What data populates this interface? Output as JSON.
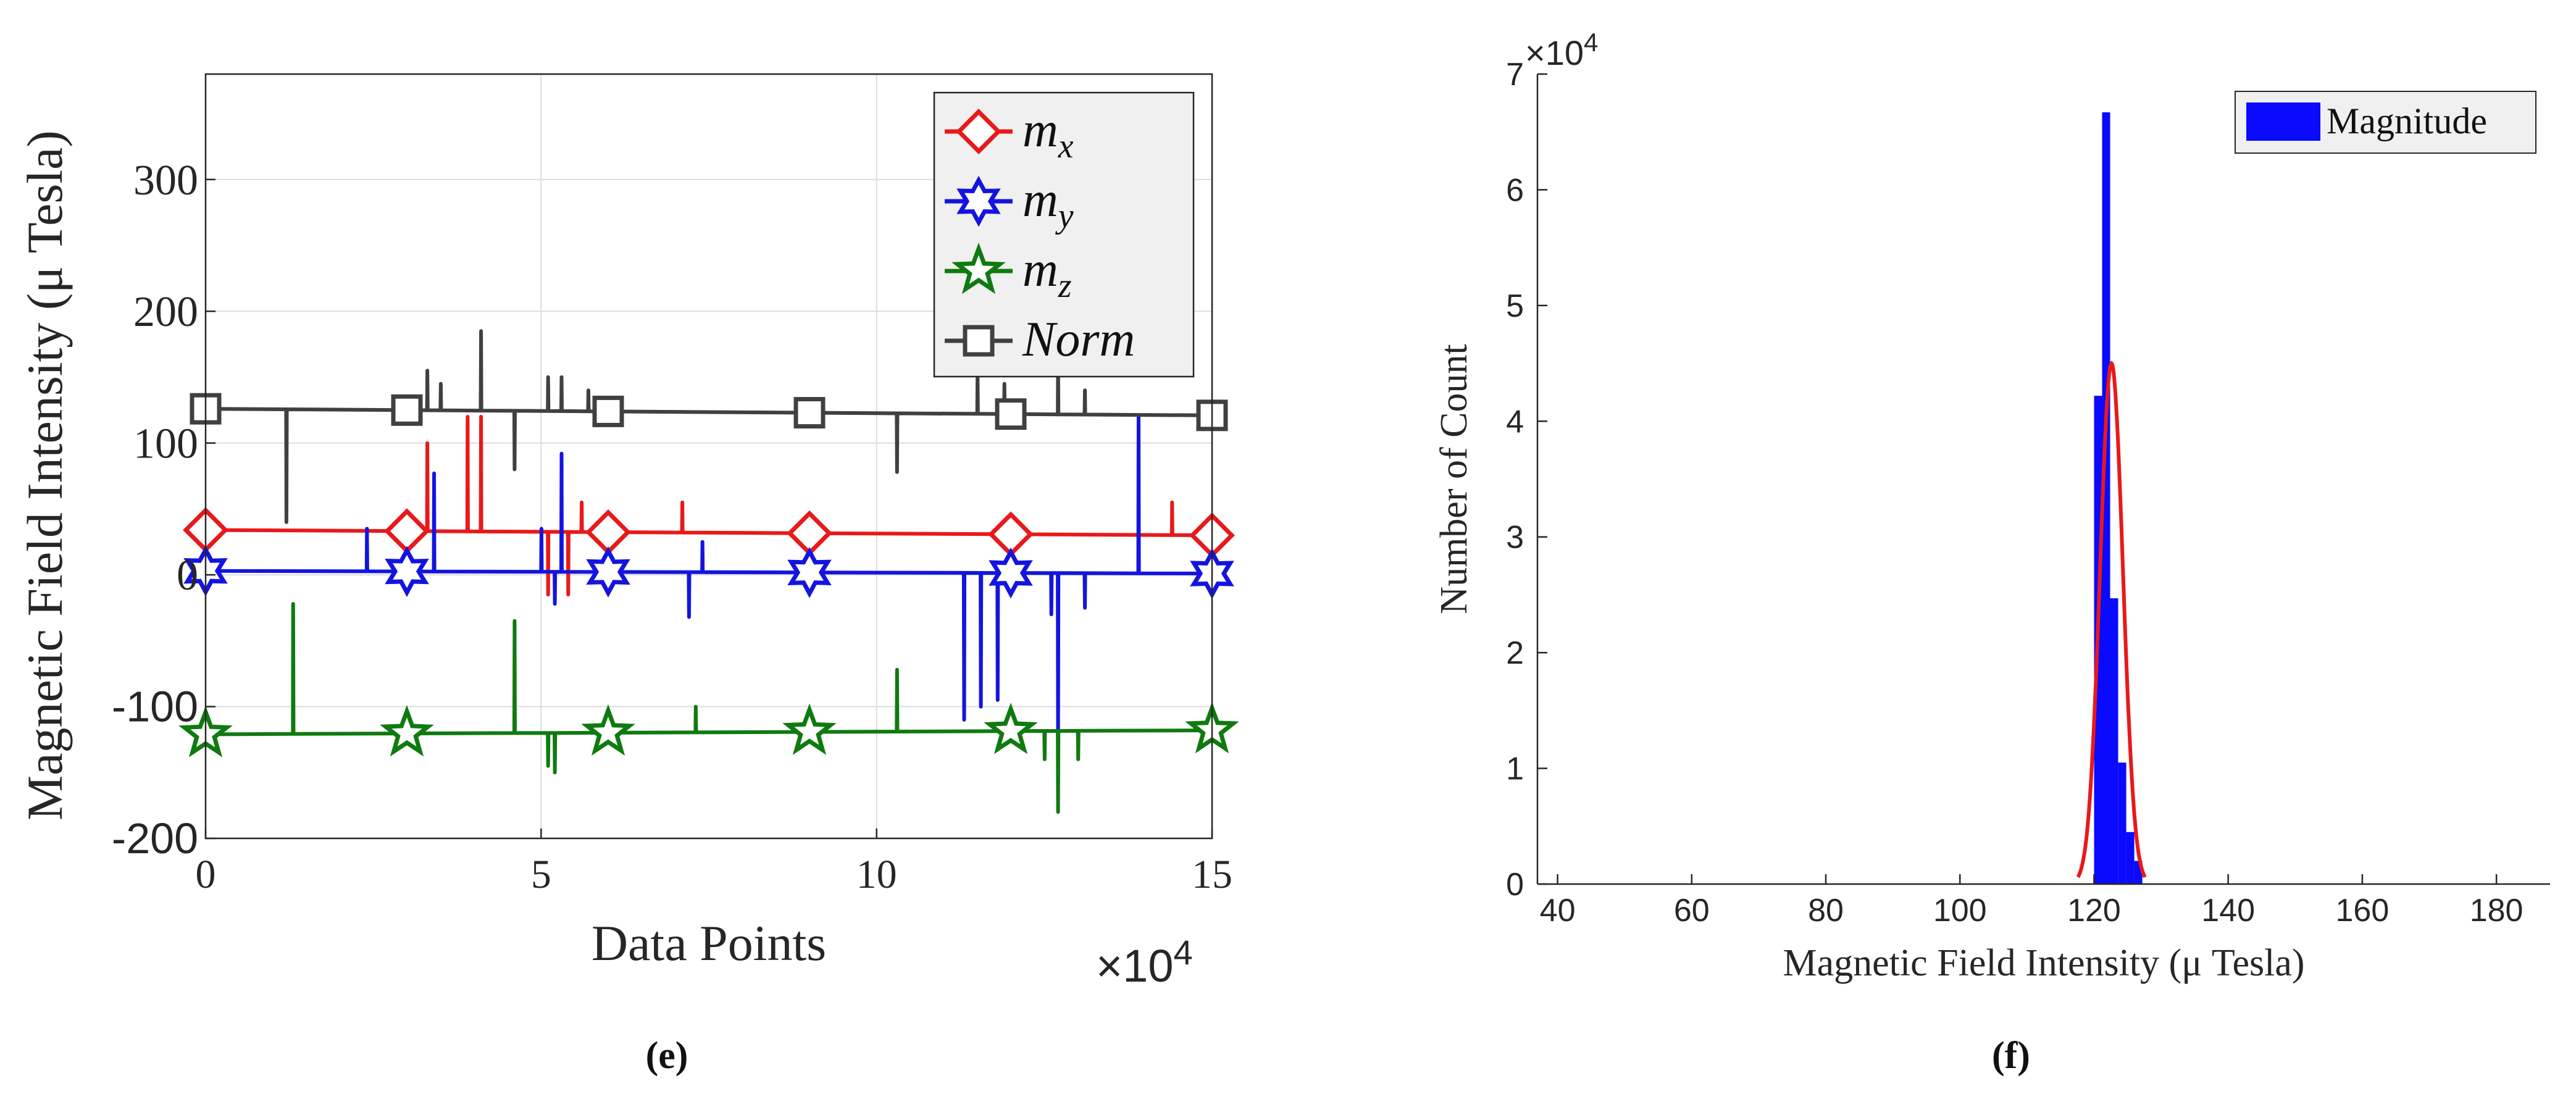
{
  "chart_data": [
    {
      "id": "e",
      "type": "line",
      "caption": "(e)",
      "xlabel": "Data Points",
      "ylabel": "Magnetic Field Intensity (μ Tesla)",
      "x_exponent": "×10",
      "x_exponent_power": "4",
      "xlim": [
        0,
        15
      ],
      "ylim": [
        -200,
        380
      ],
      "xticks": [
        0,
        5,
        10,
        15
      ],
      "xtick_labels": [
        "0",
        "5",
        "10",
        "15"
      ],
      "yticks": [
        -200,
        -100,
        0,
        100,
        200,
        300
      ],
      "ytick_labels": [
        "-200",
        "-100",
        "0",
        "100",
        "200",
        "300"
      ],
      "grid": true,
      "legend_position": "top-right",
      "marker_x": [
        0,
        3,
        6,
        9,
        12,
        15
      ],
      "series": [
        {
          "name": "m",
          "sub": "x",
          "color": "#e8191a",
          "marker": "diamond",
          "start": 34,
          "end": 30,
          "spikes": [
            [
              3.3,
              100
            ],
            [
              3.9,
              120
            ],
            [
              4.1,
              120
            ],
            [
              5.1,
              -15
            ],
            [
              5.4,
              -15
            ],
            [
              5.6,
              55
            ],
            [
              7.1,
              55
            ],
            [
              14.4,
              55
            ]
          ]
        },
        {
          "name": "m",
          "sub": "y",
          "color": "#1414e0",
          "marker": "hexagram",
          "start": 3,
          "end": 1,
          "spikes": [
            [
              2.4,
              35
            ],
            [
              3.4,
              77
            ],
            [
              5.0,
              35
            ],
            [
              5.2,
              -22
            ],
            [
              5.3,
              92
            ],
            [
              7.2,
              -32
            ],
            [
              7.4,
              25
            ],
            [
              11.3,
              -110
            ],
            [
              11.55,
              -100
            ],
            [
              11.8,
              -95
            ],
            [
              12.6,
              -30
            ],
            [
              12.7,
              -135
            ],
            [
              13.1,
              -25
            ],
            [
              13.9,
              120
            ]
          ]
        },
        {
          "name": "m",
          "sub": "z",
          "color": "#0f7a0f",
          "marker": "pentagram",
          "start": -121,
          "end": -118,
          "spikes": [
            [
              1.3,
              -22
            ],
            [
              4.6,
              -35
            ],
            [
              5.1,
              -145
            ],
            [
              5.2,
              -150
            ],
            [
              7.3,
              -100
            ],
            [
              10.3,
              -72
            ],
            [
              12.5,
              -140
            ],
            [
              12.7,
              -180
            ],
            [
              13.0,
              -140
            ]
          ]
        },
        {
          "name": "Norm",
          "sub": "",
          "color": "#404040",
          "marker": "square",
          "start": 126,
          "end": 121,
          "spikes": [
            [
              1.2,
              40
            ],
            [
              3.3,
              155
            ],
            [
              3.5,
              145
            ],
            [
              4.1,
              185
            ],
            [
              4.6,
              80
            ],
            [
              5.1,
              150
            ],
            [
              5.3,
              150
            ],
            [
              5.7,
              140
            ],
            [
              10.3,
              78
            ],
            [
              11.5,
              155
            ],
            [
              11.9,
              145
            ],
            [
              12.7,
              165
            ],
            [
              13.1,
              140
            ]
          ]
        }
      ]
    },
    {
      "id": "f",
      "type": "bar",
      "caption": "(f)",
      "xlabel": "Magnetic Field Intensity (μ Tesla)",
      "ylabel": "Number of Count",
      "y_exponent": "×10",
      "y_exponent_power": "4",
      "xlim": [
        37,
        188
      ],
      "ylim": [
        0,
        7
      ],
      "xticks": [
        40,
        60,
        80,
        100,
        120,
        140,
        160,
        180
      ],
      "xtick_labels": [
        "40",
        "60",
        "80",
        "100",
        "120",
        "140",
        "160",
        "180"
      ],
      "yticks": [
        0,
        1,
        2,
        3,
        4,
        5,
        6,
        7
      ],
      "ytick_labels": [
        "0",
        "1",
        "2",
        "3",
        "4",
        "5",
        "6",
        "7"
      ],
      "grid": false,
      "legend_position": "top-right",
      "legend_label": "Magnitude",
      "bar_color": "#0a0aff",
      "fit_color": "#e8191a",
      "bins": [
        {
          "x0": 120.0,
          "x1": 121.2,
          "count": 4.22
        },
        {
          "x0": 121.2,
          "x1": 122.4,
          "count": 6.67
        },
        {
          "x0": 122.4,
          "x1": 123.6,
          "count": 2.47
        },
        {
          "x0": 123.6,
          "x1": 124.8,
          "count": 1.05
        },
        {
          "x0": 124.8,
          "x1": 126.0,
          "count": 0.45
        },
        {
          "x0": 126.0,
          "x1": 127.2,
          "count": 0.2
        }
      ],
      "fit": {
        "mean": 122.6,
        "sigma": 1.7,
        "peak": 4.5,
        "from": 117.6,
        "to": 127.6
      }
    }
  ]
}
